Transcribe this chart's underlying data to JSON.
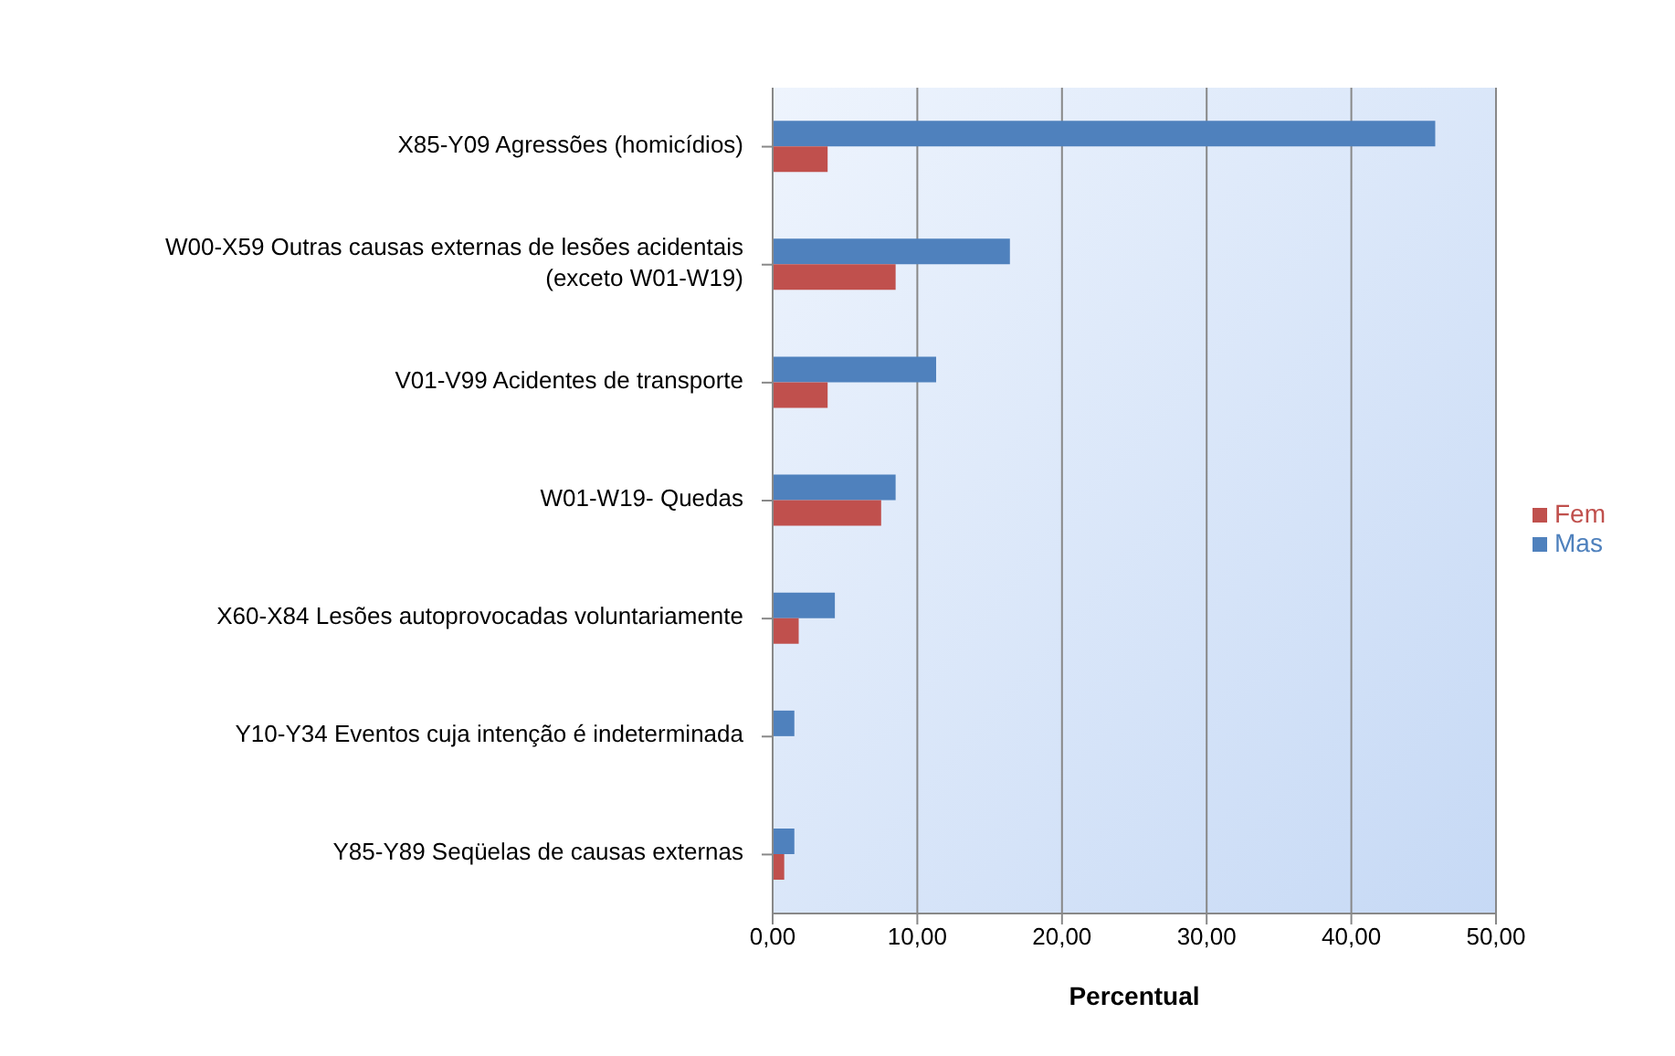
{
  "chart_data": {
    "type": "bar",
    "orientation": "horizontal",
    "xlabel": "Percentual",
    "categories": [
      "X85-Y09 Agressões (homicídios)",
      "W00-X59 Outras causas externas de lesões acidentais (exceto W01-W19)",
      "V01-V99 Acidentes de transporte",
      "W01-W19- Quedas",
      "X60-X84 Lesões autoprovocadas voluntariamente",
      "Y10-Y34 Eventos cuja intenção é indeterminada",
      "Y85-Y89 Seqüelas de causas externas"
    ],
    "series": [
      {
        "name": "Mas",
        "color": "#4f81bd",
        "values": [
          45.8,
          16.4,
          11.3,
          8.5,
          4.3,
          1.5,
          1.5
        ]
      },
      {
        "name": "Fem",
        "color": "#c0504d",
        "values": [
          3.8,
          8.5,
          3.8,
          7.5,
          1.8,
          0,
          0.8
        ]
      }
    ],
    "xlim": [
      0,
      50
    ],
    "xticks": [
      {
        "value": 0,
        "label": "0,00"
      },
      {
        "value": 10,
        "label": "10,00"
      },
      {
        "value": 20,
        "label": "20,00"
      },
      {
        "value": 30,
        "label": "30,00"
      },
      {
        "value": 40,
        "label": "40,00"
      },
      {
        "value": 50,
        "label": "50,00"
      }
    ],
    "grid": "x",
    "legend": "right"
  }
}
